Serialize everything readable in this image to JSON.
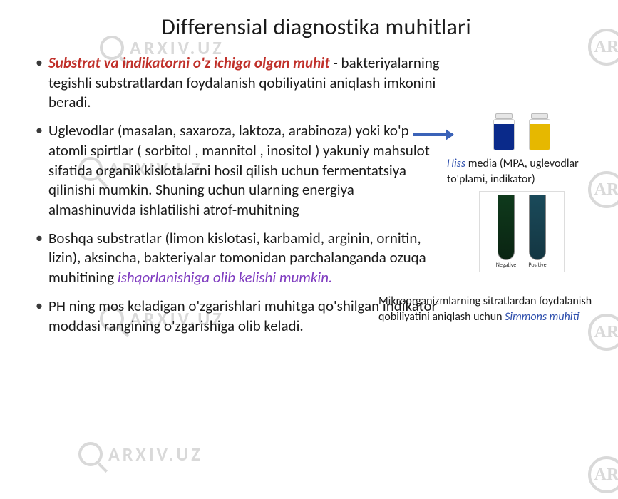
{
  "title": "Differensial diagnostika muhitlari",
  "bullets": {
    "b1_lead": "Substrat va indikatorni o'z ichiga olgan muhit ",
    "b1_rest": "- bakteriyalarning tegishli substratlardan foydalanish qobiliyatini aniqlash imkonini beradi.",
    "b2": "Uglevodlar (masalan, saxaroza, laktoza, arabinoza) yoki ko'p atomli spirtlar ( sorbitol , mannitol , inositol ) yakuniy mahsulot sifatida organik kislotalarni hosil qilish uchun fermentatsiya qilinishi mumkin. Shuning uchun ularning energiya almashinuvida ishlatilishi atrof-muhitning",
    "b3_a": "Boshqa substratlar (limon kislotasi, karbamid, arginin, ornitin, lizin), aksincha, bakteriyalar tomonidan parchalanganda ozuqa muhitining ",
    "b3_b": "ishqorlanishiga olib kelishi mumkin.",
    "b4": "PH ning mos keladigan o'zgarishlari muhitga qo'shilgan indikator moddasi rangining o'zgarishiga olib keladi."
  },
  "right": {
    "vial1_color": "#0a2a8a",
    "vial2_color": "#e6b800",
    "caption1_blue": "Hiss",
    "caption1_rest": " media (MPA, uglevodlar to'plami, indikator)",
    "tube_neg_top": "#0f3a1c",
    "tube_neg_bot": "#0a2412",
    "tube_pos_top": "#1a4a5a",
    "tube_pos_bot": "#143642",
    "tube_neg_label": "Negative",
    "tube_pos_label": "Positive",
    "caption2_a": "Mikroorganizmlarning sitratlardan foydalanish qobiliyatini aniqlash uchun ",
    "caption2_blue": "Simmons muhiti"
  },
  "watermarks": {
    "text": "ARXIV.UZ",
    "ar": "AR"
  },
  "colors": {
    "red": "#c0302a",
    "purple": "#7f3cc0",
    "blue": "#2e4fad",
    "body_text": "#1a1a1a",
    "wm": "#d9d9d9",
    "arrow": "#3b63b8"
  }
}
